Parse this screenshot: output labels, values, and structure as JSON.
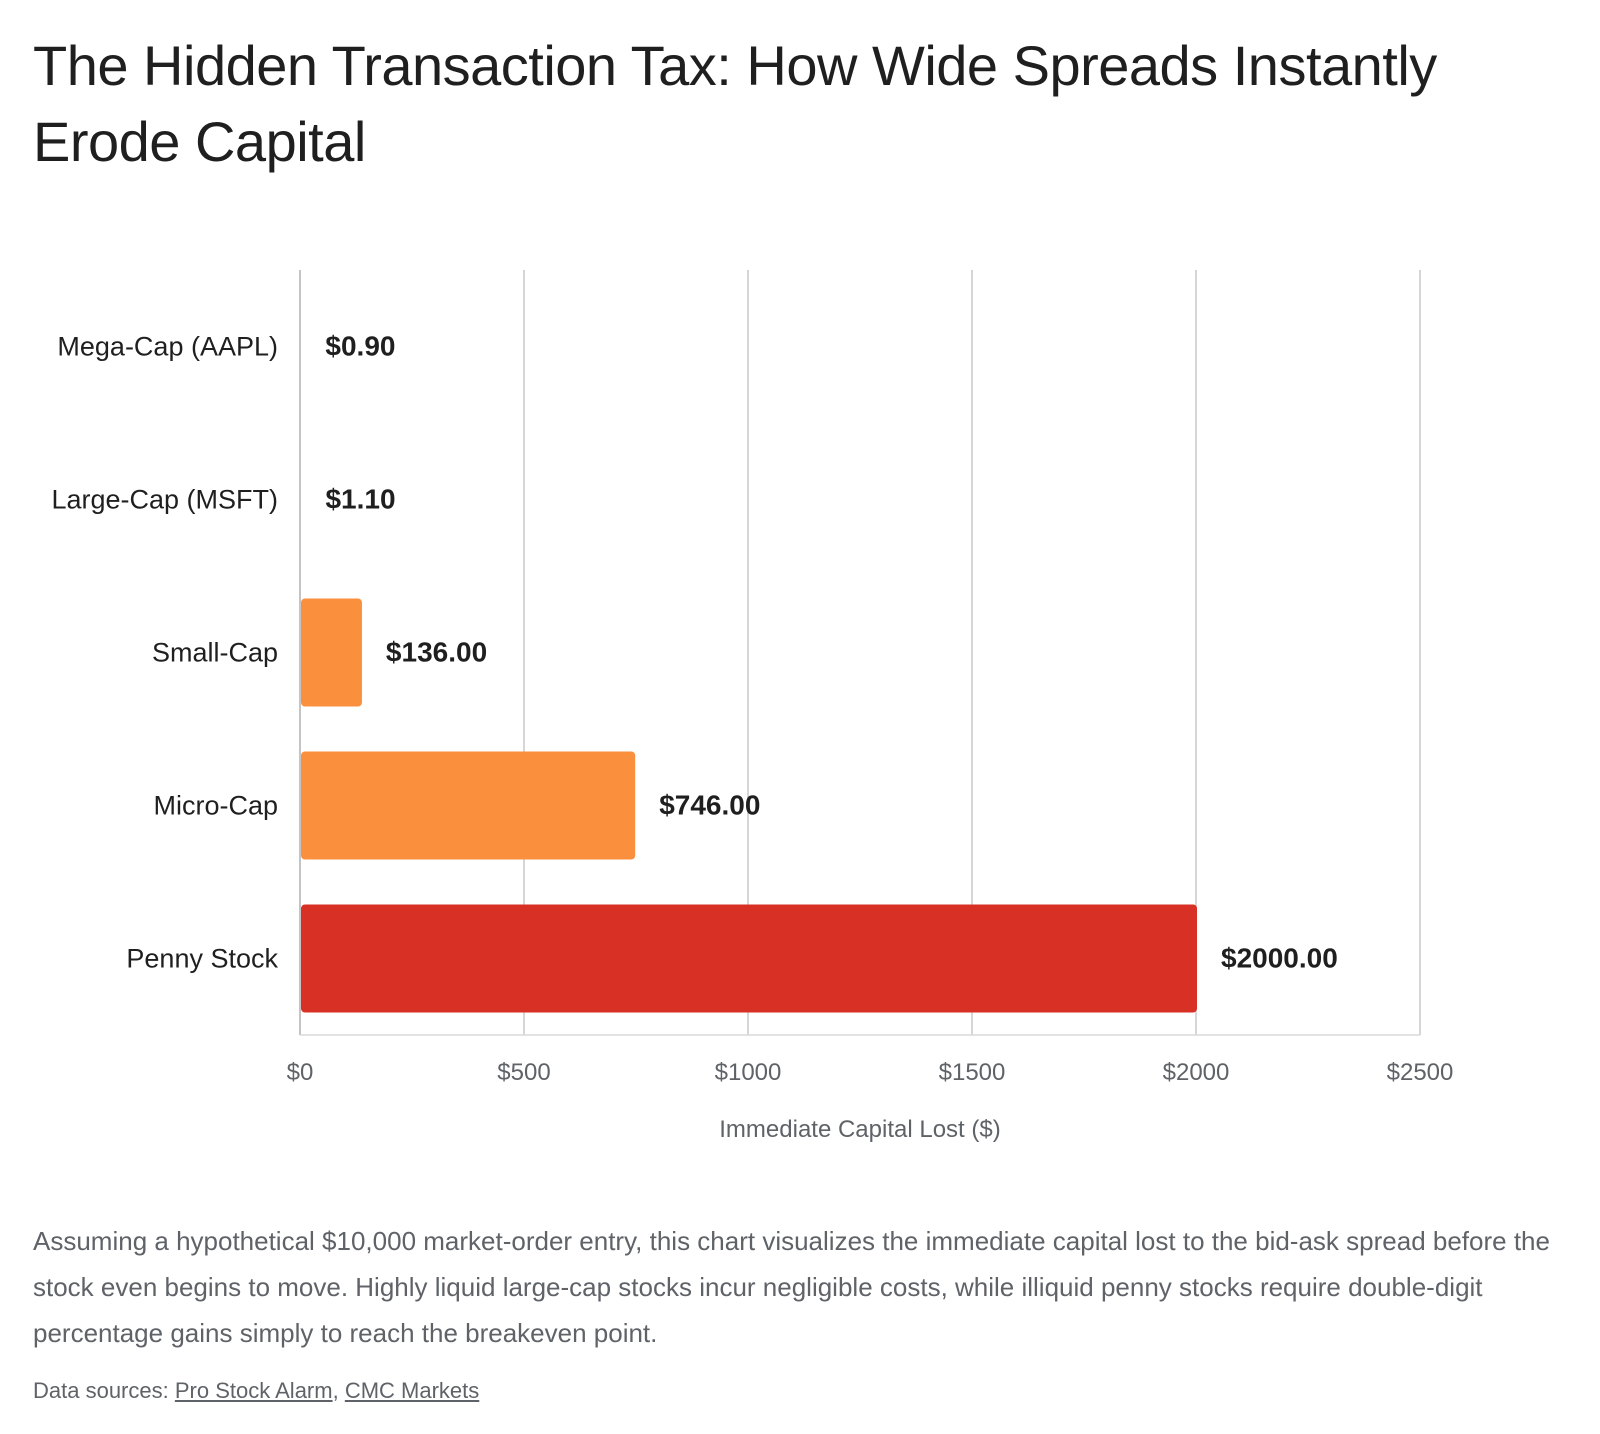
{
  "title": "The Hidden Transaction Tax: How Wide Spreads Instantly Erode Capital",
  "caption": "Assuming a hypothetical $10,000 market-order entry, this chart visualizes the immediate capital lost to the bid-ask spread before the stock even begins to move. Highly liquid large-cap stocks incur negligible costs, while illiquid penny stocks require double-digit percentage gains simply to reach the breakeven point.",
  "sources": {
    "label": "Data sources:",
    "links": [
      "Pro Stock Alarm",
      "CMC Markets"
    ],
    "separator": ","
  },
  "colors": {
    "orange": "#fa8f3e",
    "red": "#d93025",
    "grid": "#c8c8c8",
    "axis": "#b0b0b0"
  },
  "chart_data": {
    "type": "bar",
    "orientation": "horizontal",
    "categories": [
      "Mega-Cap (AAPL)",
      "Large-Cap (MSFT)",
      "Small-Cap",
      "Micro-Cap",
      "Penny Stock"
    ],
    "values": [
      0.9,
      1.1,
      136.0,
      746.0,
      2000.0
    ],
    "data_labels": [
      "$0.90",
      "$1.10",
      "$136.00",
      "$746.00",
      "$2000.00"
    ],
    "bar_colors": [
      "#fa8f3e",
      "#fa8f3e",
      "#fa8f3e",
      "#fa8f3e",
      "#d93025"
    ],
    "xlabel": "Immediate Capital Lost ($)",
    "ylabel": "",
    "xlim": [
      0,
      2500
    ],
    "xticks": [
      0,
      500,
      1000,
      1500,
      2000,
      2500
    ],
    "xtick_labels": [
      "$0",
      "$500",
      "$1000",
      "$1500",
      "$2000",
      "$2500"
    ],
    "grid": "vertical",
    "legend": "none"
  }
}
